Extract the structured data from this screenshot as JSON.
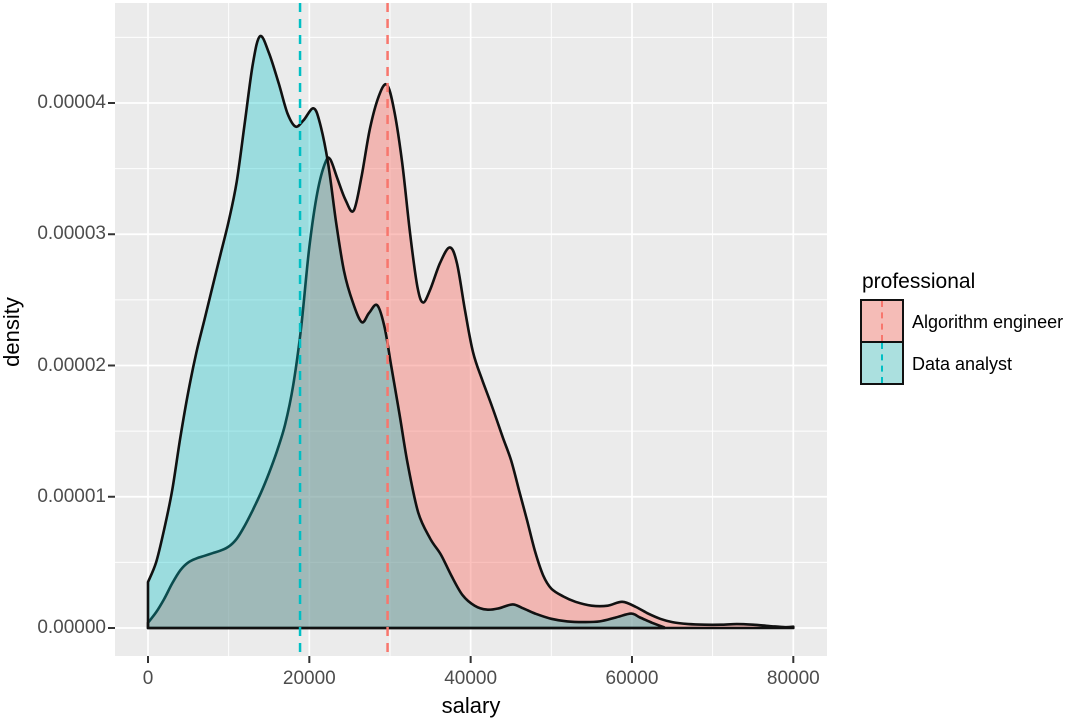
{
  "chart_data": {
    "type": "area",
    "subtype": "overlapping-density-curves (ggplot2 style)",
    "title": "",
    "xlabel": "salary",
    "ylabel": "density",
    "xlim": [
      0,
      80000
    ],
    "ylim": [
      0,
      4.52e-05
    ],
    "x_ticks": [
      0,
      20000,
      40000,
      60000,
      80000
    ],
    "x_tick_labels": [
      "0",
      "20000",
      "40000",
      "60000",
      "80000"
    ],
    "y_ticks": [
      0,
      1e-05,
      2e-05,
      3e-05,
      4e-05
    ],
    "y_tick_labels": [
      "0.00000",
      "0.00001",
      "0.00002",
      "0.00003",
      "0.00004"
    ],
    "grid": {
      "major_color": "#ffffff",
      "minor_color": "#ffffff",
      "minor_x_step": 10000,
      "minor_y_step": 5e-06
    },
    "panel_bg": "#EBEBEB",
    "outline_color": "#111111",
    "legend_position": "right",
    "legend_title": "professional",
    "x_unit": "salary in thousands",
    "y_unit": "density in units of 1e-5",
    "series": [
      {
        "name": "Algorithm engineer",
        "color": "#F8766D",
        "fill_opacity": 0.45,
        "mean_vline_x": 29700,
        "points": [
          [
            0,
            0.04
          ],
          [
            1,
            0.12
          ],
          [
            2,
            0.22
          ],
          [
            3,
            0.34
          ],
          [
            4,
            0.44
          ],
          [
            5,
            0.5
          ],
          [
            6,
            0.53
          ],
          [
            7,
            0.55
          ],
          [
            8,
            0.57
          ],
          [
            9,
            0.59
          ],
          [
            10,
            0.62
          ],
          [
            11,
            0.68
          ],
          [
            12,
            0.78
          ],
          [
            13,
            0.9
          ],
          [
            14,
            1.03
          ],
          [
            15,
            1.18
          ],
          [
            16,
            1.35
          ],
          [
            17,
            1.55
          ],
          [
            18,
            1.85
          ],
          [
            19,
            2.3
          ],
          [
            20,
            2.9
          ],
          [
            21,
            3.32
          ],
          [
            22,
            3.55
          ],
          [
            22.6,
            3.57
          ],
          [
            23.5,
            3.42
          ],
          [
            24.5,
            3.26
          ],
          [
            25.5,
            3.18
          ],
          [
            26.5,
            3.45
          ],
          [
            27.5,
            3.8
          ],
          [
            28.6,
            4.05
          ],
          [
            29.6,
            4.14
          ],
          [
            30.5,
            3.95
          ],
          [
            31.5,
            3.55
          ],
          [
            32.5,
            3.0
          ],
          [
            33.4,
            2.6
          ],
          [
            34.1,
            2.48
          ],
          [
            35,
            2.58
          ],
          [
            36.2,
            2.78
          ],
          [
            37.4,
            2.9
          ],
          [
            38.3,
            2.78
          ],
          [
            39.3,
            2.42
          ],
          [
            40.3,
            2.1
          ],
          [
            41.5,
            1.88
          ],
          [
            42.7,
            1.68
          ],
          [
            44,
            1.45
          ],
          [
            45,
            1.28
          ],
          [
            46,
            1.05
          ],
          [
            47,
            0.82
          ],
          [
            48,
            0.58
          ],
          [
            49,
            0.4
          ],
          [
            50,
            0.3
          ],
          [
            51.5,
            0.24
          ],
          [
            53,
            0.2
          ],
          [
            55,
            0.17
          ],
          [
            57,
            0.17
          ],
          [
            58.8,
            0.2
          ],
          [
            60.5,
            0.16
          ],
          [
            62,
            0.11
          ],
          [
            63.5,
            0.07
          ],
          [
            65,
            0.045
          ],
          [
            67,
            0.03
          ],
          [
            69,
            0.025
          ],
          [
            71,
            0.025
          ],
          [
            73,
            0.03
          ],
          [
            75,
            0.025
          ],
          [
            77,
            0.015
          ],
          [
            79,
            0.006
          ],
          [
            80,
            0.01
          ]
        ]
      },
      {
        "name": "Data analyst",
        "color": "#00BFC4",
        "fill_opacity": 0.34,
        "mean_vline_x": 18850,
        "points": [
          [
            0,
            0.35
          ],
          [
            1,
            0.5
          ],
          [
            2,
            0.75
          ],
          [
            3,
            1.05
          ],
          [
            4,
            1.45
          ],
          [
            5,
            1.8
          ],
          [
            6,
            2.1
          ],
          [
            7,
            2.35
          ],
          [
            8,
            2.6
          ],
          [
            9,
            2.85
          ],
          [
            10,
            3.1
          ],
          [
            11,
            3.4
          ],
          [
            12,
            3.85
          ],
          [
            13,
            4.3
          ],
          [
            13.9,
            4.51
          ],
          [
            15,
            4.38
          ],
          [
            16.2,
            4.15
          ],
          [
            17.3,
            3.92
          ],
          [
            18.3,
            3.82
          ],
          [
            19.3,
            3.87
          ],
          [
            20.5,
            3.96
          ],
          [
            21.3,
            3.85
          ],
          [
            22.3,
            3.55
          ],
          [
            23.3,
            3.1
          ],
          [
            24.3,
            2.72
          ],
          [
            25.4,
            2.48
          ],
          [
            26.5,
            2.33
          ],
          [
            27.4,
            2.4
          ],
          [
            28.4,
            2.46
          ],
          [
            29.3,
            2.3
          ],
          [
            30.2,
            1.98
          ],
          [
            31.2,
            1.62
          ],
          [
            32.2,
            1.25
          ],
          [
            33.5,
            0.88
          ],
          [
            35,
            0.68
          ],
          [
            36.3,
            0.56
          ],
          [
            37.6,
            0.4
          ],
          [
            39,
            0.25
          ],
          [
            40.5,
            0.17
          ],
          [
            42,
            0.14
          ],
          [
            43.5,
            0.15
          ],
          [
            45.2,
            0.18
          ],
          [
            46.5,
            0.15
          ],
          [
            48,
            0.11
          ],
          [
            50,
            0.07
          ],
          [
            52,
            0.05
          ],
          [
            54,
            0.045
          ],
          [
            56,
            0.05
          ],
          [
            58,
            0.08
          ],
          [
            59.9,
            0.11
          ],
          [
            61,
            0.08
          ],
          [
            62.5,
            0.04
          ],
          [
            64,
            0.005
          ]
        ]
      }
    ],
    "vlines": [
      {
        "series": "Algorithm engineer",
        "x": 29700,
        "color": "#F8766D",
        "style": "dashed"
      },
      {
        "series": "Data analyst",
        "x": 18850,
        "color": "#00BFC4",
        "style": "dashed"
      }
    ]
  },
  "legend": {
    "title": "professional",
    "items": [
      {
        "label": "Algorithm engineer",
        "color": "#F8766D",
        "swatch_bg": "#F5BCB7"
      },
      {
        "label": "Data analyst",
        "color": "#00BFC4",
        "swatch_bg": "#ABE0DF"
      }
    ]
  }
}
